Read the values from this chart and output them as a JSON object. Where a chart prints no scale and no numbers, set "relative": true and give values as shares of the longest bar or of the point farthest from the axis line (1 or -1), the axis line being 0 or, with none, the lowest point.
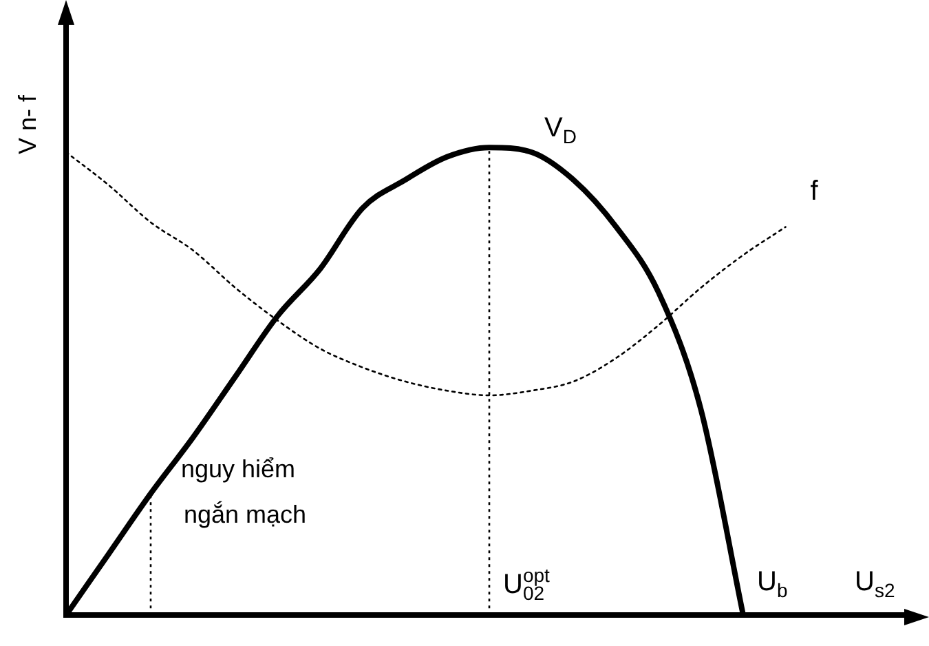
{
  "chart_data": {
    "type": "line",
    "relative": true,
    "ylabel": "V n- f",
    "xlabel": "U$_{s2}$",
    "categories": [
      null,
      null,
      null,
      null,
      null,
      null,
      null,
      null,
      null,
      null,
      null,
      null,
      null,
      null,
      null,
      null,
      null,
      null,
      null,
      null,
      null
    ],
    "series": [
      {
        "name": "V$_{D}$",
        "color": "#000000",
        "line_style": "solid",
        "values": [
          0,
          0.13,
          0.26,
          0.38,
          0.51,
          0.64,
          0.74,
          0.87,
          0.93,
          0.98,
          1.0,
          0.99,
          0.93,
          0.83,
          0.69,
          0.44,
          0,
          null,
          null,
          null,
          null
        ]
      },
      {
        "name": "f",
        "color": "#000000",
        "line_style": "dotted",
        "values": [
          0.99,
          0.92,
          0.84,
          0.78,
          0.7,
          0.63,
          0.57,
          0.53,
          0.5,
          0.48,
          0.47,
          0.48,
          0.5,
          0.55,
          0.62,
          0.7,
          0.77,
          0.83,
          null,
          null,
          null
        ]
      }
    ],
    "annotations": [
      "nguy hiểm ngắn mạch",
      "U$^{opt}$$_{02}$",
      "U$_{b}$"
    ],
    "legend": false,
    "grid": false,
    "marker": "none"
  }
}
